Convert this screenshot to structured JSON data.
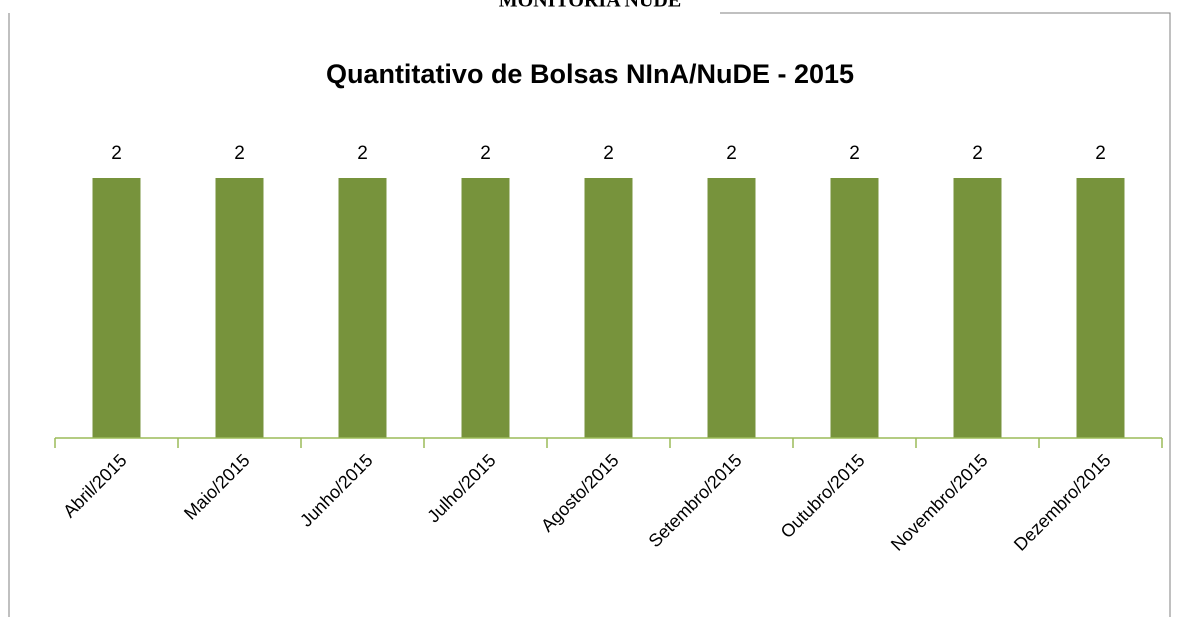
{
  "heading": "MONITORIA NUDE",
  "chart_data": {
    "type": "bar",
    "title": "Quantitativo de Bolsas NInA/NuDE - 2015",
    "categories": [
      "Abril/2015",
      "Maio/2015",
      "Junho/2015",
      "Julho/2015",
      "Agosto/2015",
      "Setembro/2015",
      "Outubro/2015",
      "Novembro/2015",
      "Dezembro/2015"
    ],
    "values": [
      2,
      2,
      2,
      2,
      2,
      2,
      2,
      2,
      2
    ],
    "color": "#77933c",
    "ylim": [
      0,
      2.5
    ]
  }
}
